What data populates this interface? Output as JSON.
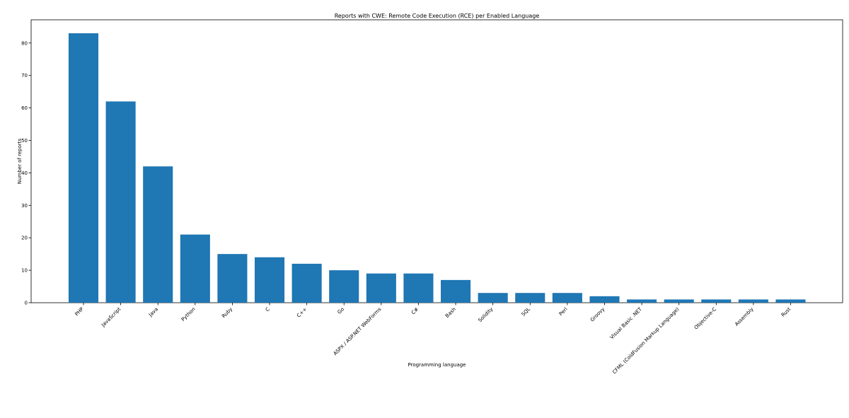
{
  "chart_data": {
    "type": "bar",
    "title": "Reports with CWE: Remote Code Execution (RCE) per Enabled Language",
    "xlabel": "Programming language",
    "ylabel": "Number of reports",
    "categories": [
      "PHP",
      "JavaScript",
      "Java",
      "Python",
      "Ruby",
      "C",
      "C++",
      "Go",
      "ASPX / ASP.NET WebForms",
      "C#",
      "Bash",
      "Solidity",
      "SQL",
      "Perl",
      "Groovy",
      "Visual Basic .NET",
      "CFML (ColdFusion Markup Language)",
      "Objective-C",
      "Assembly",
      "Rust"
    ],
    "values": [
      83,
      62,
      42,
      21,
      15,
      14,
      12,
      10,
      9,
      9,
      7,
      3,
      3,
      3,
      2,
      1,
      1,
      1,
      1,
      1
    ],
    "ylim": [
      0,
      87.15
    ],
    "yticks": [
      0,
      10,
      20,
      30,
      40,
      50,
      60,
      70,
      80
    ],
    "grid": false,
    "legend": "none",
    "bar_color": "#1f77b4"
  }
}
